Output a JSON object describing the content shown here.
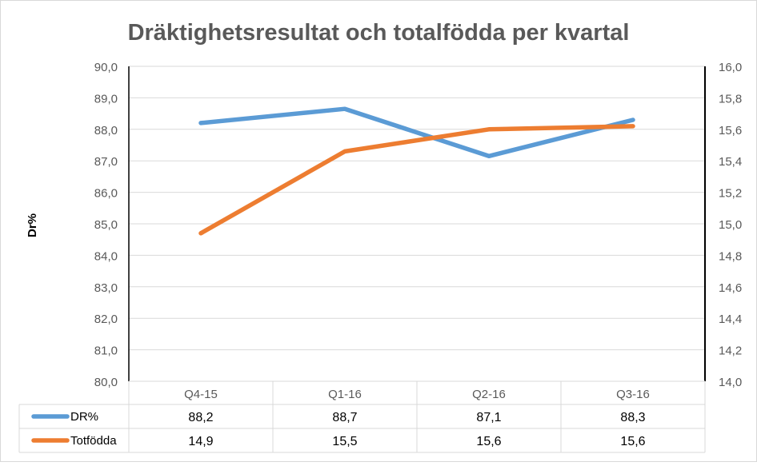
{
  "chart_data": {
    "type": "line",
    "title": "Dräktighetsresultat och totalfödda per kvartal",
    "ylabel": "Dr%",
    "y2label": "",
    "categories": [
      "Q4-15",
      "Q1-16",
      "Q2-16",
      "Q3-16"
    ],
    "ylim": [
      80,
      90
    ],
    "y2lim": [
      14.0,
      16.0
    ],
    "yticks": [
      "80,0",
      "81,0",
      "82,0",
      "83,0",
      "84,0",
      "85,0",
      "86,0",
      "87,0",
      "88,0",
      "89,0",
      "90,0"
    ],
    "y2ticks": [
      "14,0",
      "14,2",
      "14,4",
      "14,6",
      "14,8",
      "15,0",
      "15,2",
      "15,4",
      "15,6",
      "15,8",
      "16,0"
    ],
    "grid": true,
    "legend": "data-table",
    "series": [
      {
        "name": "DR%",
        "axis": "left",
        "color": "#5B9BD5",
        "values": [
          88.2,
          88.65,
          87.15,
          88.3
        ],
        "labels": [
          "88,2",
          "88,7",
          "87,1",
          "88,3"
        ]
      },
      {
        "name": "Totfödda",
        "axis": "right",
        "color": "#ED7D31",
        "values": [
          14.94,
          15.46,
          15.6,
          15.62
        ],
        "labels": [
          "14,9",
          "15,5",
          "15,6",
          "15,6"
        ]
      }
    ]
  }
}
